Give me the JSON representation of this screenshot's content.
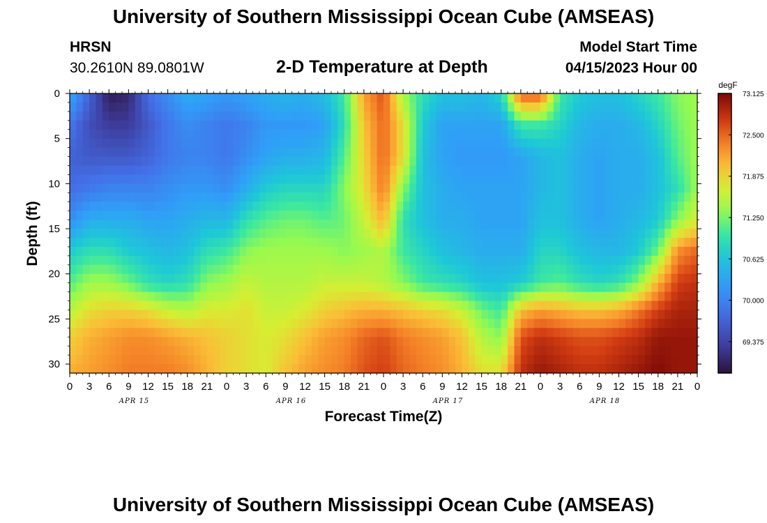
{
  "header": {
    "main_title": "University of Southern Mississippi Ocean Cube (AMSEAS)",
    "station": "HRSN",
    "coords": "30.2610N  89.0801W",
    "subtitle": "2-D Temperature at Depth",
    "start_label": "Model Start Time",
    "start_value": "04/15/2023 Hour 00"
  },
  "footer": {
    "repeat_title": "University of Southern Mississippi Ocean Cube (AMSEAS)"
  },
  "chart_data": {
    "type": "heatmap",
    "title": "2-D Temperature at Depth",
    "xlabel": "Forecast Time(Z)",
    "ylabel": "Depth (ft)",
    "x_hours": [
      0,
      96
    ],
    "ylim": [
      0,
      31
    ],
    "y_ticks": [
      0,
      5,
      10,
      15,
      20,
      25,
      30
    ],
    "x_tick_labels": [
      "0",
      "3",
      "6",
      "9",
      "12",
      "15",
      "18",
      "21",
      "0",
      "3",
      "6",
      "9",
      "12",
      "15",
      "18",
      "21",
      "0",
      "3",
      "6",
      "9",
      "12",
      "15",
      "18",
      "21",
      "0",
      "3",
      "6",
      "9",
      "12",
      "15",
      "18",
      "21",
      "0"
    ],
    "day_labels": [
      {
        "hour": 12,
        "text": "APR 15"
      },
      {
        "hour": 36,
        "text": "APR 16"
      },
      {
        "hour": 60,
        "text": "APR 17"
      },
      {
        "hour": 84,
        "text": "APR 18"
      }
    ],
    "colorbar": {
      "unit": "degF",
      "min": 68.9,
      "max": 73.125,
      "tick_values": [
        73.125,
        72.5,
        71.875,
        71.25,
        70.625,
        70.0,
        69.375
      ],
      "tick_labels": [
        "73.125",
        "72.500",
        "71.875",
        "71.250",
        "70.625",
        "70.000",
        "69.375"
      ]
    },
    "profiles": [
      {
        "hour": 0,
        "values": [
          70.4,
          69.9,
          69.7,
          69.8,
          70.1,
          70.7,
          71.1,
          71.5,
          71.9,
          72.1
        ]
      },
      {
        "hour": 3,
        "values": [
          69.7,
          69.5,
          69.6,
          69.9,
          70.4,
          70.9,
          71.4,
          71.8,
          72.1,
          72.2
        ]
      },
      {
        "hour": 6,
        "values": [
          69.0,
          69.3,
          69.6,
          70.0,
          70.4,
          70.9,
          71.4,
          71.9,
          72.2,
          72.3
        ]
      },
      {
        "hour": 9,
        "values": [
          69.1,
          69.3,
          69.6,
          70.0,
          70.4,
          70.7,
          71.2,
          71.9,
          72.3,
          72.4
        ]
      },
      {
        "hour": 12,
        "values": [
          69.8,
          69.6,
          69.7,
          70.0,
          70.3,
          70.6,
          70.9,
          71.8,
          72.3,
          72.4
        ]
      },
      {
        "hour": 15,
        "values": [
          70.1,
          69.9,
          69.9,
          70.1,
          70.3,
          70.5,
          70.8,
          71.6,
          72.2,
          72.4
        ]
      },
      {
        "hour": 18,
        "values": [
          70.4,
          70.1,
          70.0,
          70.2,
          70.4,
          70.6,
          70.9,
          71.5,
          72.1,
          72.3
        ]
      },
      {
        "hour": 21,
        "values": [
          70.3,
          70.0,
          70.0,
          70.2,
          70.5,
          70.9,
          71.3,
          71.7,
          72.0,
          72.1
        ]
      },
      {
        "hour": 24,
        "values": [
          70.2,
          69.9,
          69.9,
          70.1,
          70.5,
          71.0,
          71.4,
          71.7,
          71.9,
          71.9
        ]
      },
      {
        "hour": 27,
        "values": [
          70.3,
          70.0,
          70.1,
          70.4,
          70.9,
          71.3,
          71.6,
          71.8,
          71.8,
          71.8
        ]
      },
      {
        "hour": 30,
        "values": [
          70.4,
          70.2,
          70.3,
          70.7,
          71.1,
          71.4,
          71.5,
          71.6,
          71.7,
          71.7
        ]
      },
      {
        "hour": 33,
        "values": [
          70.5,
          70.2,
          70.4,
          70.8,
          71.2,
          71.4,
          71.5,
          71.6,
          71.8,
          72.0
        ]
      },
      {
        "hour": 36,
        "values": [
          70.4,
          70.2,
          70.4,
          70.8,
          71.2,
          71.4,
          71.5,
          71.7,
          72.0,
          72.2
        ]
      },
      {
        "hour": 39,
        "values": [
          70.6,
          70.3,
          70.5,
          70.8,
          71.1,
          71.4,
          71.6,
          71.9,
          72.2,
          72.3
        ]
      },
      {
        "hour": 42,
        "values": [
          71.0,
          70.9,
          71.1,
          71.3,
          71.2,
          71.3,
          71.6,
          72.0,
          72.3,
          72.4
        ]
      },
      {
        "hour": 45,
        "values": [
          72.2,
          72.0,
          71.9,
          71.8,
          71.6,
          71.4,
          71.6,
          72.1,
          72.5,
          72.6
        ]
      },
      {
        "hour": 48,
        "values": [
          72.6,
          72.5,
          72.5,
          72.4,
          72.1,
          71.5,
          71.5,
          72.1,
          72.6,
          72.7
        ]
      },
      {
        "hour": 51,
        "values": [
          71.4,
          71.8,
          71.8,
          71.3,
          70.9,
          71.0,
          71.3,
          72.0,
          72.4,
          72.5
        ]
      },
      {
        "hour": 54,
        "values": [
          70.9,
          70.7,
          70.6,
          70.6,
          70.6,
          70.8,
          71.0,
          71.9,
          72.3,
          72.4
        ]
      },
      {
        "hour": 57,
        "values": [
          70.6,
          70.3,
          70.3,
          70.4,
          70.4,
          70.6,
          70.9,
          71.8,
          72.2,
          72.3
        ]
      },
      {
        "hour": 60,
        "values": [
          70.6,
          70.3,
          70.2,
          70.3,
          70.4,
          70.5,
          70.8,
          71.6,
          72.0,
          72.1
        ]
      },
      {
        "hour": 63,
        "values": [
          70.5,
          70.3,
          70.2,
          70.3,
          70.3,
          70.4,
          70.6,
          71.2,
          71.5,
          71.8
        ]
      },
      {
        "hour": 66,
        "values": [
          70.8,
          70.3,
          70.2,
          70.3,
          70.3,
          70.4,
          70.6,
          71.0,
          71.3,
          71.8
        ]
      },
      {
        "hour": 69,
        "values": [
          72.6,
          71.0,
          70.3,
          70.3,
          70.3,
          70.4,
          70.7,
          72.0,
          72.6,
          72.8
        ]
      },
      {
        "hour": 72,
        "values": [
          72.6,
          71.0,
          70.5,
          70.5,
          70.6,
          70.8,
          71.0,
          72.2,
          72.8,
          73.0
        ]
      },
      {
        "hour": 75,
        "values": [
          71.0,
          70.8,
          70.6,
          70.6,
          70.6,
          70.8,
          71.1,
          72.1,
          72.7,
          72.9
        ]
      },
      {
        "hour": 78,
        "values": [
          70.7,
          70.5,
          70.4,
          70.4,
          70.4,
          70.6,
          70.9,
          72.0,
          72.6,
          72.8
        ]
      },
      {
        "hour": 81,
        "values": [
          70.6,
          70.4,
          70.3,
          70.3,
          70.3,
          70.5,
          70.8,
          72.0,
          72.6,
          72.8
        ]
      },
      {
        "hour": 84,
        "values": [
          70.6,
          70.4,
          70.4,
          70.4,
          70.4,
          70.5,
          70.9,
          72.1,
          72.7,
          72.9
        ]
      },
      {
        "hour": 87,
        "values": [
          70.8,
          70.5,
          70.4,
          70.4,
          70.5,
          70.7,
          71.3,
          72.4,
          72.8,
          73.0
        ]
      },
      {
        "hour": 90,
        "values": [
          71.0,
          70.8,
          70.6,
          70.6,
          70.7,
          71.2,
          72.1,
          72.7,
          73.0,
          73.1
        ]
      },
      {
        "hour": 93,
        "values": [
          71.3,
          71.2,
          71.1,
          70.9,
          71.3,
          72.3,
          72.7,
          72.9,
          73.0,
          73.0
        ]
      },
      {
        "hour": 96,
        "values": [
          71.4,
          71.4,
          71.4,
          71.4,
          71.7,
          72.5,
          72.8,
          72.9,
          73.0,
          73.0
        ]
      }
    ],
    "profile_depths": [
      0,
      3.5,
      7,
      10.5,
      14,
      17.5,
      21,
      24,
      27,
      31
    ]
  }
}
